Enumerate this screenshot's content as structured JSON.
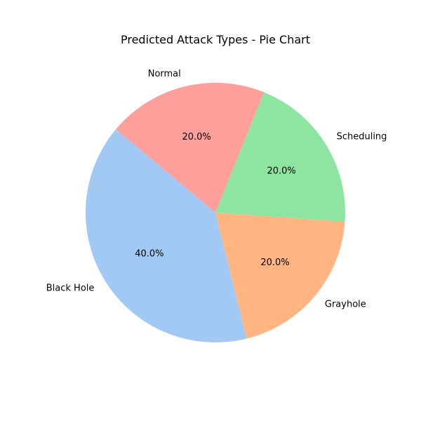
{
  "chart_data": {
    "type": "pie",
    "title": "Predicted Attack Types - Pie Chart",
    "slices": [
      {
        "label": "Black Hole",
        "value": 40.0,
        "pct_label": "40.0%",
        "color": "#a1c9f4"
      },
      {
        "label": "Grayhole",
        "value": 20.0,
        "pct_label": "20.0%",
        "color": "#ffb482"
      },
      {
        "label": "Scheduling",
        "value": 20.0,
        "pct_label": "20.0%",
        "color": "#8de5a1"
      },
      {
        "label": "Normal",
        "value": 20.0,
        "pct_label": "20.0%",
        "color": "#ff9f9b"
      }
    ],
    "start_angle_deg": 140,
    "direction": "counterclockwise",
    "legend": "none"
  }
}
